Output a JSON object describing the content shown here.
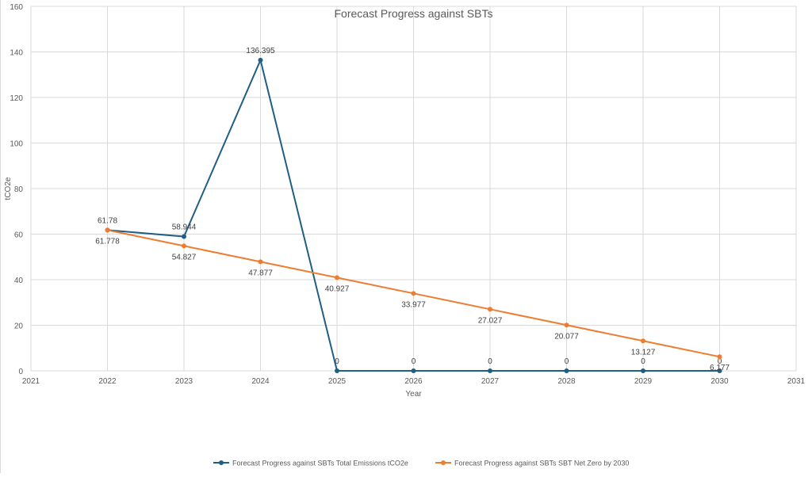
{
  "chart_data": {
    "type": "line",
    "title": "Forecast Progress against SBTs",
    "xlabel": "Year",
    "ylabel": "tCO2e",
    "xlim": [
      2021,
      2031
    ],
    "ylim": [
      0,
      160
    ],
    "xticks": [
      2021,
      2022,
      2023,
      2024,
      2025,
      2026,
      2027,
      2028,
      2029,
      2030,
      2031
    ],
    "yticks": [
      0,
      20,
      40,
      60,
      80,
      100,
      120,
      140,
      160
    ],
    "grid": true,
    "legend_position": "bottom",
    "series": [
      {
        "name": "Forecast Progress against SBTs Total Emissions tCO2e",
        "color": "#1F5F85",
        "label_position": "above",
        "x": [
          2022,
          2023,
          2024,
          2025,
          2026,
          2027,
          2028,
          2029,
          2030
        ],
        "values": [
          61.78,
          58.944,
          136.395,
          0,
          0,
          0,
          0,
          0,
          0
        ]
      },
      {
        "name": "Forecast Progress against SBTs SBT Net Zero by 2030",
        "color": "#ED7D31",
        "label_position": "below",
        "x": [
          2022,
          2023,
          2024,
          2025,
          2026,
          2027,
          2028,
          2029,
          2030
        ],
        "values": [
          61.778,
          54.827,
          47.877,
          40.927,
          33.977,
          27.027,
          20.077,
          13.127,
          6.177
        ]
      }
    ]
  }
}
